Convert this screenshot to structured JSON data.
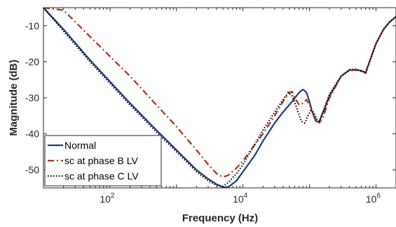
{
  "chart_data": {
    "type": "line",
    "title": "",
    "xlabel": "Frequency (Hz)",
    "ylabel": "Magnitude (dB)",
    "xscale": "log",
    "xlim": [
      10,
      2000000
    ],
    "ylim": [
      -55,
      -5
    ],
    "xticks": [
      100,
      10000,
      1000000
    ],
    "xtick_labels": [
      {
        "base": "10",
        "exp": "2"
      },
      {
        "base": "10",
        "exp": "4"
      },
      {
        "base": "10",
        "exp": "6"
      }
    ],
    "yticks": [
      -50,
      -40,
      -30,
      -20,
      -10
    ],
    "ytick_labels": [
      "-50",
      "-40",
      "-30",
      "-20",
      "-10"
    ],
    "grid": false,
    "legend_position": "bottom-left",
    "series": [
      {
        "name": "Normal",
        "color": "#1f3d7a",
        "style": "solid",
        "points": [
          [
            10,
            -5
          ],
          [
            20,
            -11
          ],
          [
            50,
            -19.5
          ],
          [
            100,
            -25.5
          ],
          [
            200,
            -31.5
          ],
          [
            500,
            -39
          ],
          [
            1000,
            -44.5
          ],
          [
            2000,
            -50
          ],
          [
            3000,
            -52.5
          ],
          [
            4000,
            -54
          ],
          [
            5000,
            -54.8
          ],
          [
            6000,
            -54.8
          ],
          [
            8000,
            -53
          ],
          [
            10000,
            -50.5
          ],
          [
            15000,
            -46
          ],
          [
            20000,
            -42
          ],
          [
            30000,
            -37
          ],
          [
            40000,
            -34
          ],
          [
            55000,
            -31
          ],
          [
            70000,
            -28.5
          ],
          [
            80000,
            -27.7
          ],
          [
            90000,
            -28.5
          ],
          [
            100000,
            -31
          ],
          [
            110000,
            -34
          ],
          [
            125000,
            -36.5
          ],
          [
            140000,
            -36.7
          ],
          [
            160000,
            -34
          ],
          [
            200000,
            -29.5
          ],
          [
            300000,
            -24
          ],
          [
            400000,
            -22.3
          ],
          [
            500000,
            -22.2
          ],
          [
            600000,
            -22.5
          ],
          [
            700000,
            -23
          ],
          [
            800000,
            -20
          ],
          [
            1000000,
            -15
          ],
          [
            1300000,
            -11
          ],
          [
            1600000,
            -9
          ],
          [
            2000000,
            -7.5
          ]
        ]
      },
      {
        "name": "sc at phase B LV",
        "color": "#a83218",
        "style": "dashdot",
        "points": [
          [
            10,
            -5
          ],
          [
            20,
            -5.7
          ],
          [
            50,
            -13
          ],
          [
            100,
            -18.5
          ],
          [
            200,
            -24
          ],
          [
            500,
            -32
          ],
          [
            1000,
            -38
          ],
          [
            2000,
            -44.5
          ],
          [
            3000,
            -48.5
          ],
          [
            4000,
            -51
          ],
          [
            5000,
            -52
          ],
          [
            6000,
            -51.5
          ],
          [
            8000,
            -49.5
          ],
          [
            10000,
            -47.5
          ],
          [
            15000,
            -43
          ],
          [
            20000,
            -40
          ],
          [
            30000,
            -35
          ],
          [
            40000,
            -31
          ],
          [
            50000,
            -28.5
          ],
          [
            55000,
            -28.3
          ],
          [
            60000,
            -30
          ],
          [
            70000,
            -32
          ],
          [
            80000,
            -31.5
          ],
          [
            90000,
            -30.5
          ],
          [
            100000,
            -32
          ],
          [
            120000,
            -35.5
          ],
          [
            140000,
            -37
          ],
          [
            160000,
            -35.5
          ],
          [
            200000,
            -30
          ],
          [
            300000,
            -24
          ],
          [
            400000,
            -22.4
          ],
          [
            500000,
            -22.3
          ],
          [
            600000,
            -22.7
          ],
          [
            700000,
            -23.2
          ],
          [
            800000,
            -20
          ],
          [
            1000000,
            -15
          ],
          [
            1300000,
            -11
          ],
          [
            1600000,
            -9
          ],
          [
            2000000,
            -7.5
          ]
        ]
      },
      {
        "name": "sc at phase C LV",
        "color": "#000000",
        "style": "dotted",
        "points": [
          [
            10,
            -5
          ],
          [
            20,
            -11.5
          ],
          [
            50,
            -20
          ],
          [
            100,
            -26
          ],
          [
            200,
            -32
          ],
          [
            500,
            -39.5
          ],
          [
            1000,
            -45
          ],
          [
            2000,
            -50.5
          ],
          [
            3000,
            -53
          ],
          [
            4000,
            -54.3
          ],
          [
            5000,
            -54.6
          ],
          [
            6000,
            -53.5
          ],
          [
            8000,
            -51
          ],
          [
            10000,
            -48.5
          ],
          [
            15000,
            -43
          ],
          [
            20000,
            -39
          ],
          [
            30000,
            -34
          ],
          [
            40000,
            -30.5
          ],
          [
            48000,
            -28.5
          ],
          [
            55000,
            -29.5
          ],
          [
            65000,
            -33
          ],
          [
            75000,
            -36.5
          ],
          [
            85000,
            -37
          ],
          [
            95000,
            -35
          ],
          [
            105000,
            -33.5
          ],
          [
            115000,
            -34
          ],
          [
            130000,
            -36
          ],
          [
            140000,
            -36.5
          ],
          [
            160000,
            -34
          ],
          [
            200000,
            -29
          ],
          [
            300000,
            -24
          ],
          [
            400000,
            -22.2
          ],
          [
            500000,
            -22.1
          ],
          [
            600000,
            -22.5
          ],
          [
            700000,
            -23
          ],
          [
            800000,
            -20
          ],
          [
            1000000,
            -15
          ],
          [
            1300000,
            -11
          ],
          [
            1600000,
            -9
          ],
          [
            2000000,
            -7.5
          ]
        ]
      }
    ]
  }
}
